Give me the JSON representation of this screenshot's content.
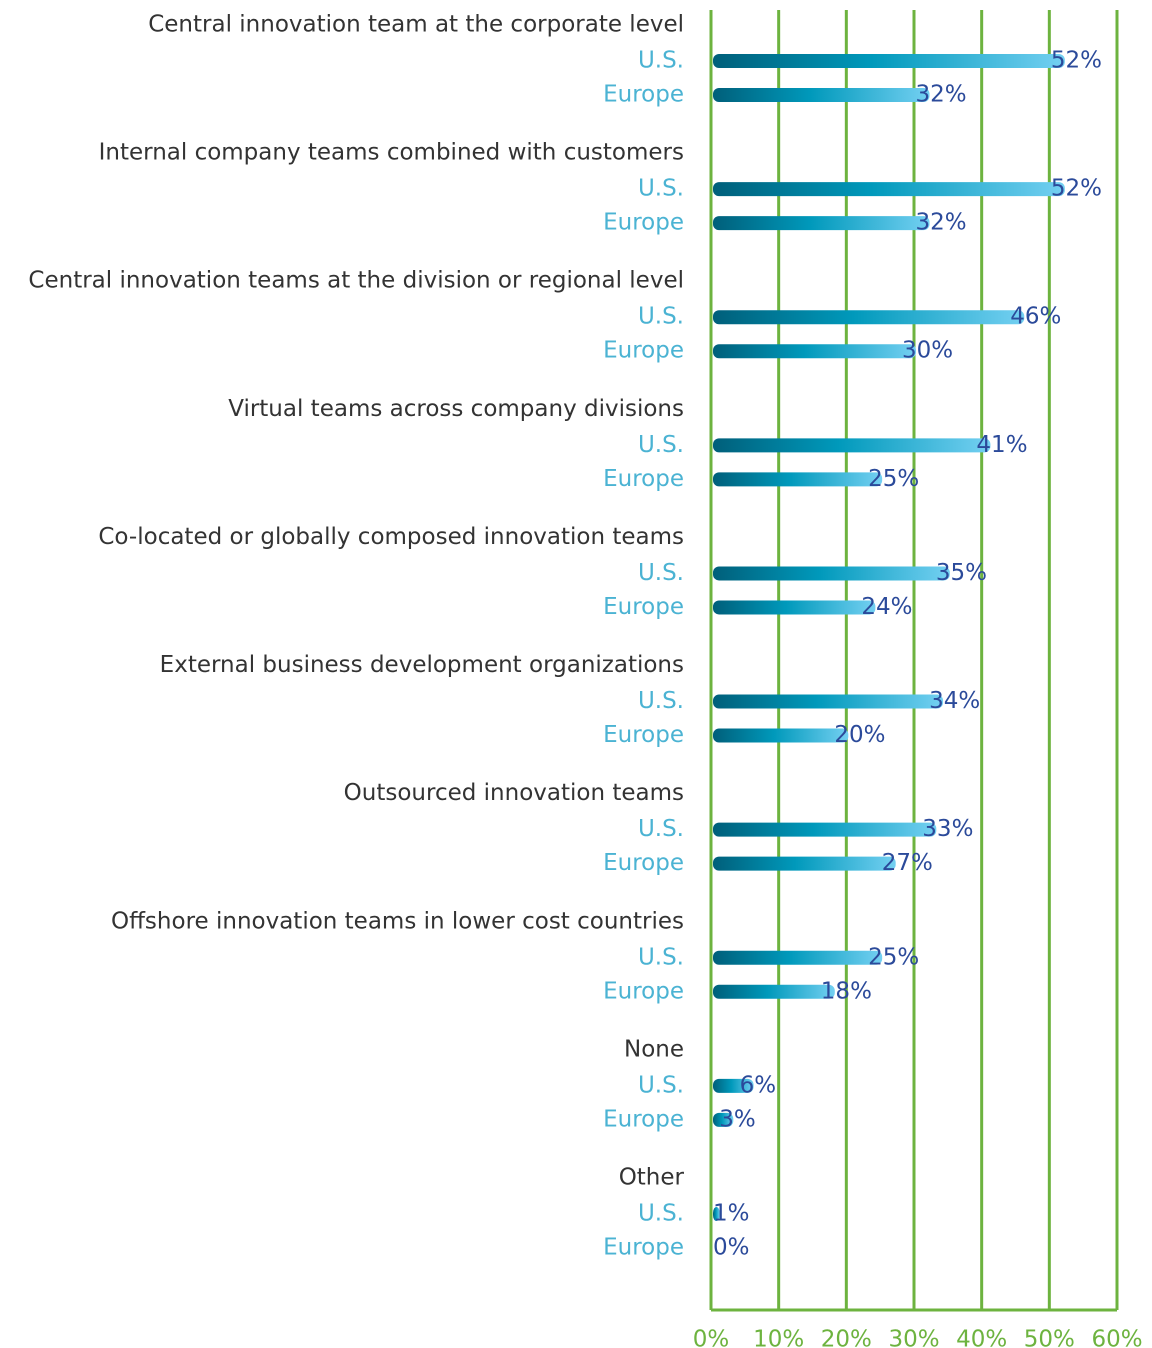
{
  "chart_data": {
    "type": "bar",
    "orientation": "horizontal",
    "categories": [
      "Central innovation team at the corporate level",
      "Internal company teams combined with customers",
      "Central innovation teams at the division or regional level",
      "Virtual teams across company divisions",
      "Co-located or globally composed innovation teams",
      "External business development organizations",
      "Outsourced innovation teams",
      "Offshore innovation teams in lower cost countries",
      "None",
      "Other"
    ],
    "series": [
      {
        "name": "U.S.",
        "color": "#0096b9",
        "values": [
          52,
          52,
          46,
          41,
          35,
          34,
          33,
          25,
          6,
          1
        ],
        "value_labels": [
          "52%",
          "52%",
          "46%",
          "41%",
          "35%",
          "34%",
          "33%",
          "25%",
          "6%",
          "1%"
        ]
      },
      {
        "name": "Europe",
        "color": "#0096b9",
        "values": [
          32,
          32,
          30,
          25,
          24,
          20,
          27,
          18,
          3,
          0
        ],
        "value_labels": [
          "32%",
          "32%",
          "30%",
          "25%",
          "24%",
          "20%",
          "27%",
          "18%",
          "3%",
          "0%"
        ]
      }
    ],
    "xlim": [
      0,
      60
    ],
    "xticks": [
      {
        "value": 0,
        "label": "0%"
      },
      {
        "value": 10,
        "label": "10%"
      },
      {
        "value": 20,
        "label": "20%"
      },
      {
        "value": 30,
        "label": "30%"
      },
      {
        "value": 40,
        "label": "40%"
      },
      {
        "value": 50,
        "label": "50%"
      },
      {
        "value": 60,
        "label": "60%"
      }
    ],
    "grid": true,
    "grid_color": "#6db33f"
  }
}
